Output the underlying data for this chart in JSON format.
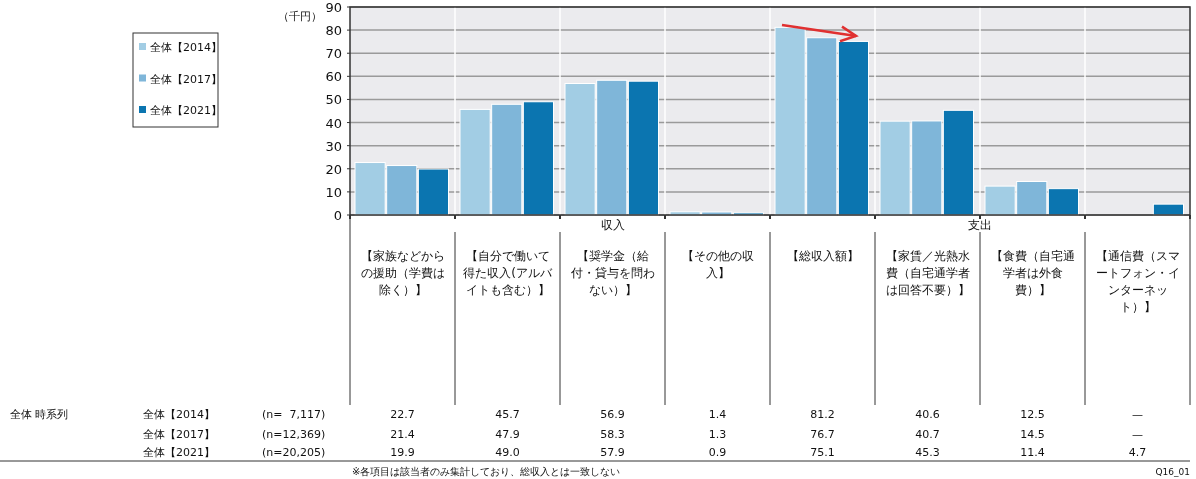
{
  "chart_data": {
    "type": "bar",
    "ylabel": "（千円）",
    "categories": [
      "【家族などからの援助（学費は除く）】",
      "【自分で働いて得た収入(アルバイトも含む）】",
      "【奨学金（給付・貸与を問わない）】",
      "【その他の収入】",
      "【総収入額】",
      "【家賃／光熱水費（自宅通学者は回答不要）】",
      "【食費（自宅通学者は外食費）】",
      "【通信費（スマートフォン・インターネット）】"
    ],
    "series": [
      {
        "name": "全体【2014】",
        "color": "#a2cde4",
        "values": [
          22.7,
          45.7,
          56.9,
          1.4,
          81.2,
          40.6,
          12.5,
          null
        ],
        "value_labels": [
          "22.7",
          "45.7",
          "56.9",
          "1.4",
          "81.2",
          "40.6",
          "12.5",
          "—"
        ]
      },
      {
        "name": "全体【2017】",
        "color": "#7fb6d9",
        "values": [
          21.4,
          47.9,
          58.3,
          1.3,
          76.7,
          40.7,
          14.5,
          null
        ],
        "value_labels": [
          "21.4",
          "47.9",
          "58.3",
          "1.3",
          "76.7",
          "40.7",
          "14.5",
          "—"
        ]
      },
      {
        "name": "全体【2021】",
        "color": "#0b75b0",
        "values": [
          19.9,
          49.0,
          57.9,
          0.9,
          75.1,
          45.3,
          11.4,
          4.7
        ],
        "value_labels": [
          "19.9",
          "49.0",
          "57.9",
          "0.9",
          "75.1",
          "45.3",
          "11.4",
          "4.7"
        ]
      }
    ],
    "ylim": [
      0,
      90
    ],
    "yticks": [
      0,
      10,
      20,
      30,
      40,
      50,
      60,
      70,
      80,
      90
    ],
    "grid": true,
    "legend": "left",
    "annotations": [
      "全体 時系列",
      "(n=  7,117)",
      "(n=12,369)",
      "(n=20,205)",
      "※各項目は該当者のみ集計しており、総収入とは一致しない",
      "Q16_01",
      "収入",
      "支出"
    ]
  }
}
